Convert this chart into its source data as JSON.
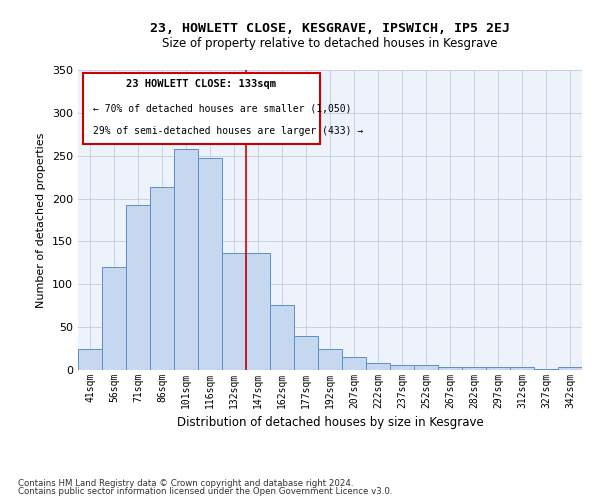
{
  "title": "23, HOWLETT CLOSE, KESGRAVE, IPSWICH, IP5 2EJ",
  "subtitle": "Size of property relative to detached houses in Kesgrave",
  "xlabel": "Distribution of detached houses by size in Kesgrave",
  "ylabel": "Number of detached properties",
  "categories": [
    "41sqm",
    "56sqm",
    "71sqm",
    "86sqm",
    "101sqm",
    "116sqm",
    "132sqm",
    "147sqm",
    "162sqm",
    "177sqm",
    "192sqm",
    "207sqm",
    "222sqm",
    "237sqm",
    "252sqm",
    "267sqm",
    "282sqm",
    "297sqm",
    "312sqm",
    "327sqm",
    "342sqm"
  ],
  "values": [
    25,
    120,
    193,
    213,
    258,
    247,
    137,
    136,
    76,
    40,
    25,
    15,
    8,
    6,
    6,
    4,
    3,
    4,
    3,
    1,
    3
  ],
  "bar_color": "#c5d8f0",
  "bar_edge_color": "#5b8fc9",
  "ylim": [
    0,
    350
  ],
  "yticks": [
    0,
    50,
    100,
    150,
    200,
    250,
    300,
    350
  ],
  "vline_x": 6.5,
  "vline_color": "#cc0000",
  "annotation_title": "23 HOWLETT CLOSE: 133sqm",
  "annotation_line1": "← 70% of detached houses are smaller (1,050)",
  "annotation_line2": "29% of semi-detached houses are larger (433) →",
  "footer_line1": "Contains HM Land Registry data © Crown copyright and database right 2024.",
  "footer_line2": "Contains public sector information licensed under the Open Government Licence v3.0.",
  "bg_color": "#ffffff",
  "plot_bg_color": "#eef2fb"
}
